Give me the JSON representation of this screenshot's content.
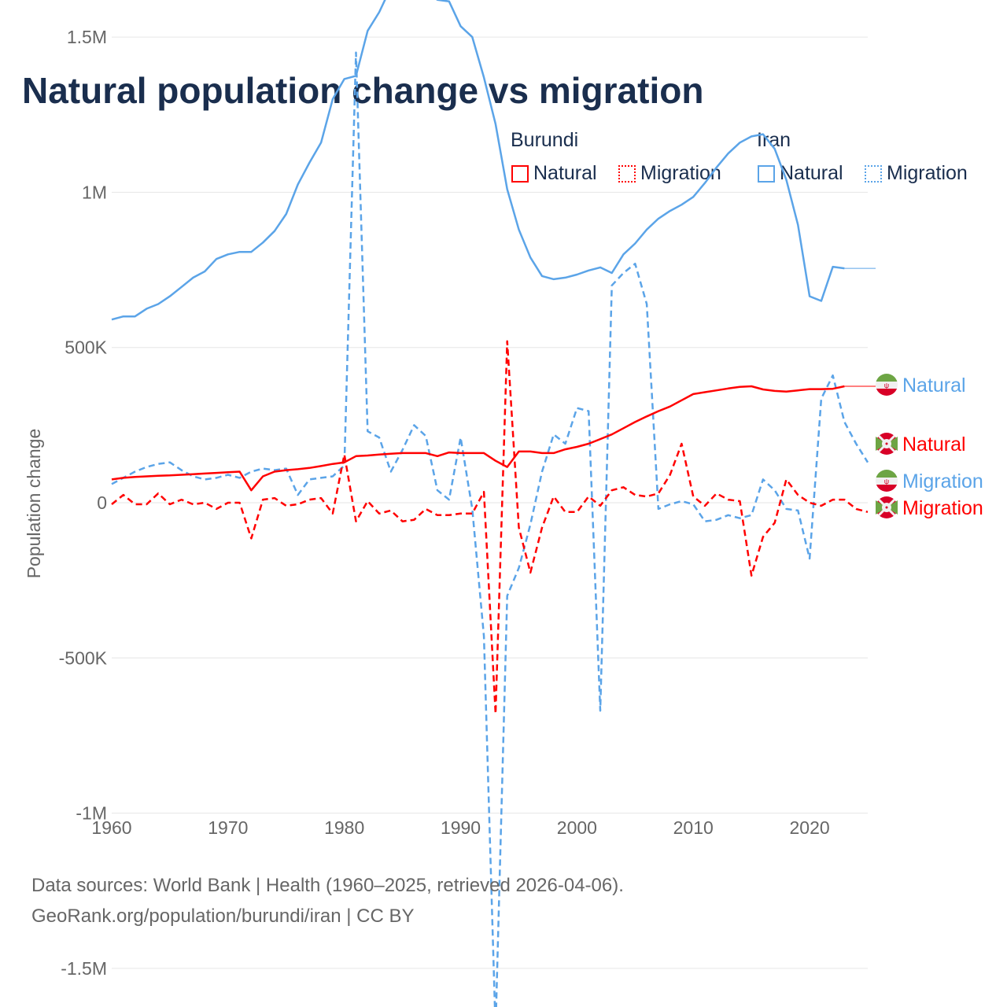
{
  "title": "Natural population change vs migration",
  "legend": {
    "groups": [
      {
        "name": "Burundi",
        "color": "#ff0000",
        "items": [
          "Natural",
          "Migration"
        ]
      },
      {
        "name": "Iran",
        "color": "#5ba4e8",
        "items": [
          "Natural",
          "Migration"
        ]
      }
    ]
  },
  "footer": {
    "line1": "Data sources: World Bank | Health (1960–2025, retrieved 2026-04-06).",
    "line2": "GeoRank.org/population/burundi/iran | CC BY"
  },
  "chart_data": {
    "type": "line",
    "title": "Natural population change vs migration",
    "xlabel": "",
    "ylabel": "Population change",
    "xlim": [
      1960,
      2025
    ],
    "ylim": [
      -1750000,
      1750000
    ],
    "xticks": [
      1960,
      1970,
      1980,
      1990,
      2000,
      2010,
      2020
    ],
    "xtick_labels": [
      "1960",
      "1970",
      "1980",
      "1990",
      "2000",
      "2010",
      "2020"
    ],
    "yticks": [
      -1500000,
      -1000000,
      -500000,
      0,
      500000,
      1000000,
      1500000
    ],
    "ytick_labels": [
      "-1.5M",
      "-1M",
      "-500K",
      "0",
      "500K",
      "1M",
      "1.5M"
    ],
    "grid": true,
    "x_start": 1960,
    "series": [
      {
        "name": "Iran Natural",
        "label": "Natural",
        "color": "#5ba4e8",
        "dash": false,
        "values": [
          590000,
          600000,
          600000,
          625000,
          640000,
          665000,
          695000,
          725000,
          745000,
          785000,
          800000,
          808000,
          808000,
          838000,
          875000,
          930000,
          1025000,
          1095000,
          1160000,
          1300000,
          1365000,
          1375000,
          1520000,
          1580000,
          1660000,
          1670000,
          1665000,
          1645000,
          1620000,
          1615000,
          1535000,
          1500000,
          1370000,
          1220000,
          1010000,
          880000,
          790000,
          730000,
          720000,
          725000,
          735000,
          748000,
          758000,
          740000,
          800000,
          835000,
          880000,
          915000,
          940000,
          960000,
          985000,
          1030000,
          1080000,
          1125000,
          1160000,
          1180000,
          1187000,
          1140000,
          1040000,
          895000,
          665000,
          650000,
          760000,
          755000
        ]
      },
      {
        "name": "Burundi Natural",
        "label": "Natural",
        "color": "#ff0000",
        "dash": false,
        "values": [
          75000,
          80000,
          83000,
          85000,
          87000,
          88000,
          90000,
          92000,
          94000,
          96000,
          98000,
          100000,
          40000,
          85000,
          100000,
          105000,
          108000,
          112000,
          118000,
          125000,
          130000,
          150000,
          152000,
          155000,
          158000,
          160000,
          160000,
          160000,
          150000,
          162000,
          160000,
          160000,
          160000,
          135000,
          115000,
          165000,
          165000,
          160000,
          160000,
          172000,
          180000,
          190000,
          205000,
          220000,
          240000,
          260000,
          278000,
          295000,
          310000,
          330000,
          350000,
          356000,
          362000,
          368000,
          373000,
          375000,
          365000,
          360000,
          358000,
          362000,
          366000,
          366000,
          367000,
          375000
        ]
      },
      {
        "name": "Iran Migration",
        "label": "Migration",
        "color": "#5ba4e8",
        "dash": true,
        "values": [
          60000,
          80000,
          100000,
          115000,
          125000,
          130000,
          105000,
          85000,
          75000,
          80000,
          90000,
          80000,
          100000,
          110000,
          105000,
          110000,
          25000,
          75000,
          80000,
          85000,
          120000,
          1450000,
          230000,
          210000,
          100000,
          170000,
          250000,
          215000,
          40000,
          10000,
          210000,
          -20000,
          -430000,
          -1700000,
          -300000,
          -210000,
          -70000,
          100000,
          220000,
          190000,
          305000,
          295000,
          -670000,
          700000,
          740000,
          770000,
          640000,
          -20000,
          -5000,
          5000,
          -5000,
          -60000,
          -55000,
          -40000,
          -50000,
          -40000,
          75000,
          40000,
          -20000,
          -25000,
          -180000,
          335000,
          410000,
          260000,
          190000,
          130000
        ]
      },
      {
        "name": "Burundi Migration",
        "label": "Migration",
        "color": "#ff0000",
        "dash": true,
        "values": [
          -5000,
          25000,
          -5000,
          -5000,
          30000,
          -5000,
          10000,
          -5000,
          0,
          -20000,
          0,
          0,
          -115000,
          10000,
          15000,
          -10000,
          -5000,
          10000,
          15000,
          -35000,
          155000,
          -60000,
          5000,
          -35000,
          -25000,
          -60000,
          -55000,
          -20000,
          -40000,
          -40000,
          -35000,
          -35000,
          35000,
          -680000,
          520000,
          -80000,
          -225000,
          -80000,
          20000,
          -30000,
          -30000,
          20000,
          -10000,
          40000,
          50000,
          25000,
          20000,
          30000,
          90000,
          190000,
          20000,
          -10000,
          30000,
          10000,
          5000,
          -235000,
          -110000,
          -65000,
          75000,
          25000,
          0,
          -10000,
          10000,
          10000,
          -20000,
          -30000
        ]
      }
    ],
    "end_labels": [
      {
        "text": "Natural",
        "country": "Iran",
        "color": "#5ba4e8"
      },
      {
        "text": "Natural",
        "country": "Burundi",
        "color": "#ff0000"
      },
      {
        "text": "Migration",
        "country": "Iran",
        "color": "#5ba4e8"
      },
      {
        "text": "Migration",
        "country": "Burundi",
        "color": "#ff0000"
      }
    ]
  }
}
